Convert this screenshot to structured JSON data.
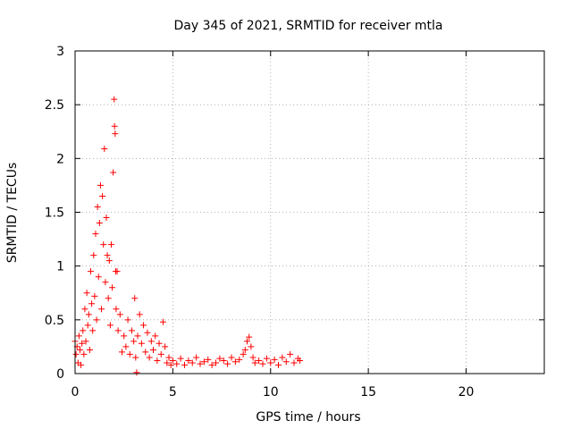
{
  "chart_data": {
    "type": "scatter",
    "title": "Day 345 of 2021, SRMTID for receiver mtla",
    "xlabel": "GPS time / hours",
    "ylabel": "SRMTID / TECUs",
    "xlim": [
      0,
      24
    ],
    "ylim": [
      0,
      3
    ],
    "xticks": [
      0,
      5,
      10,
      15,
      20
    ],
    "yticks": [
      0,
      0.5,
      1,
      1.5,
      2,
      2.5,
      3
    ],
    "xtick_labels": [
      "0",
      "5",
      "10",
      "15",
      "20"
    ],
    "ytick_labels": [
      "0",
      "0.5",
      "1",
      "1.5",
      "2",
      "2.5",
      "3"
    ],
    "grid": true,
    "marker": "+",
    "series": [
      {
        "name": "SRMTID mtla",
        "color": "#ff0000",
        "points": [
          [
            0.0,
            0.3
          ],
          [
            0.05,
            0.18
          ],
          [
            0.1,
            0.25
          ],
          [
            0.15,
            0.1
          ],
          [
            0.2,
            0.35
          ],
          [
            0.25,
            0.22
          ],
          [
            0.3,
            0.08
          ],
          [
            0.35,
            0.28
          ],
          [
            0.4,
            0.4
          ],
          [
            0.45,
            0.18
          ],
          [
            0.5,
            0.6
          ],
          [
            0.55,
            0.3
          ],
          [
            0.6,
            0.75
          ],
          [
            0.65,
            0.45
          ],
          [
            0.7,
            0.55
          ],
          [
            0.75,
            0.22
          ],
          [
            0.8,
            0.95
          ],
          [
            0.85,
            0.65
          ],
          [
            0.9,
            0.4
          ],
          [
            0.95,
            1.1
          ],
          [
            1.0,
            0.72
          ],
          [
            1.05,
            1.3
          ],
          [
            1.1,
            0.5
          ],
          [
            1.15,
            1.55
          ],
          [
            1.2,
            0.9
          ],
          [
            1.25,
            1.4
          ],
          [
            1.3,
            1.75
          ],
          [
            1.35,
            0.6
          ],
          [
            1.4,
            1.65
          ],
          [
            1.45,
            1.2
          ],
          [
            1.5,
            2.09
          ],
          [
            1.55,
            0.85
          ],
          [
            1.6,
            1.45
          ],
          [
            1.65,
            1.1
          ],
          [
            1.7,
            0.7
          ],
          [
            1.75,
            1.05
          ],
          [
            1.8,
            0.45
          ],
          [
            1.85,
            1.2
          ],
          [
            1.9,
            0.8
          ],
          [
            1.95,
            1.87
          ],
          [
            2.0,
            2.55
          ],
          [
            2.02,
            2.3
          ],
          [
            2.05,
            2.23
          ],
          [
            2.08,
            0.95
          ],
          [
            2.1,
            0.6
          ],
          [
            2.15,
            0.95
          ],
          [
            2.2,
            0.4
          ],
          [
            2.3,
            0.55
          ],
          [
            2.4,
            0.2
          ],
          [
            2.5,
            0.35
          ],
          [
            2.6,
            0.25
          ],
          [
            2.7,
            0.5
          ],
          [
            2.8,
            0.18
          ],
          [
            2.9,
            0.4
          ],
          [
            3.0,
            0.3
          ],
          [
            3.05,
            0.7
          ],
          [
            3.1,
            0.15
          ],
          [
            3.15,
            0.01
          ],
          [
            3.2,
            0.35
          ],
          [
            3.3,
            0.55
          ],
          [
            3.4,
            0.28
          ],
          [
            3.5,
            0.45
          ],
          [
            3.6,
            0.2
          ],
          [
            3.7,
            0.38
          ],
          [
            3.8,
            0.15
          ],
          [
            3.9,
            0.3
          ],
          [
            4.0,
            0.22
          ],
          [
            4.1,
            0.35
          ],
          [
            4.2,
            0.12
          ],
          [
            4.3,
            0.28
          ],
          [
            4.4,
            0.18
          ],
          [
            4.5,
            0.48
          ],
          [
            4.6,
            0.25
          ],
          [
            4.7,
            0.1
          ],
          [
            4.8,
            0.15
          ],
          [
            4.9,
            0.08
          ],
          [
            5.0,
            0.12
          ],
          [
            5.2,
            0.09
          ],
          [
            5.4,
            0.14
          ],
          [
            5.6,
            0.08
          ],
          [
            5.8,
            0.12
          ],
          [
            6.0,
            0.1
          ],
          [
            6.2,
            0.15
          ],
          [
            6.4,
            0.09
          ],
          [
            6.6,
            0.11
          ],
          [
            6.8,
            0.13
          ],
          [
            7.0,
            0.08
          ],
          [
            7.2,
            0.1
          ],
          [
            7.4,
            0.14
          ],
          [
            7.6,
            0.12
          ],
          [
            7.8,
            0.09
          ],
          [
            8.0,
            0.15
          ],
          [
            8.2,
            0.11
          ],
          [
            8.4,
            0.13
          ],
          [
            8.6,
            0.18
          ],
          [
            8.7,
            0.22
          ],
          [
            8.8,
            0.3
          ],
          [
            8.9,
            0.34
          ],
          [
            9.0,
            0.25
          ],
          [
            9.1,
            0.15
          ],
          [
            9.2,
            0.1
          ],
          [
            9.4,
            0.12
          ],
          [
            9.6,
            0.09
          ],
          [
            9.8,
            0.14
          ],
          [
            10.0,
            0.1
          ],
          [
            10.2,
            0.13
          ],
          [
            10.4,
            0.08
          ],
          [
            10.6,
            0.15
          ],
          [
            10.8,
            0.11
          ],
          [
            11.0,
            0.18
          ],
          [
            11.2,
            0.1
          ],
          [
            11.4,
            0.14
          ],
          [
            11.5,
            0.12
          ]
        ]
      }
    ]
  }
}
